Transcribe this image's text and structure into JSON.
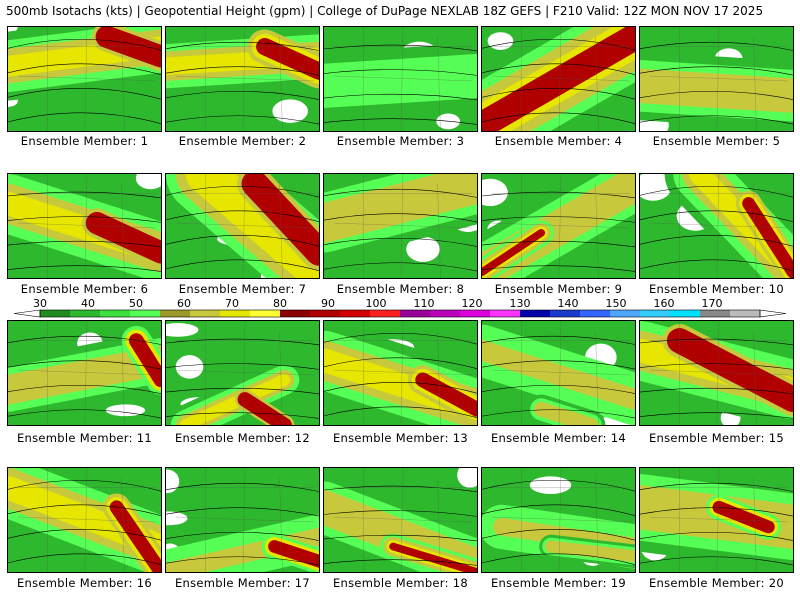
{
  "header": {
    "title": "500mb Isotachs (kts) | Geopotential Height (gpm) | College of DuPage NEXLAB   18Z GEFS | F210 Valid: 12Z MON NOV 17 2025"
  },
  "panels": [
    {
      "label": "Ensemble Member: 1"
    },
    {
      "label": "Ensemble Member: 2"
    },
    {
      "label": "Ensemble Member: 3"
    },
    {
      "label": "Ensemble Member: 4"
    },
    {
      "label": "Ensemble Member: 5"
    },
    {
      "label": "Ensemble Member: 6"
    },
    {
      "label": "Ensemble Member: 7"
    },
    {
      "label": "Ensemble Member: 8"
    },
    {
      "label": "Ensemble Member: 9"
    },
    {
      "label": "Ensemble Member: 10"
    },
    {
      "label": "Ensemble Member: 11"
    },
    {
      "label": "Ensemble Member: 12"
    },
    {
      "label": "Ensemble Member: 13"
    },
    {
      "label": "Ensemble Member: 14"
    },
    {
      "label": "Ensemble Member: 15"
    },
    {
      "label": "Ensemble Member: 16"
    },
    {
      "label": "Ensemble Member: 17"
    },
    {
      "label": "Ensemble Member: 18"
    },
    {
      "label": "Ensemble Member: 19"
    },
    {
      "label": "Ensemble Member: 20"
    }
  ],
  "colorbar": {
    "ticks": [
      "30",
      "40",
      "50",
      "60",
      "70",
      "80",
      "90",
      "100",
      "110",
      "120",
      "130",
      "140",
      "150",
      "160",
      "170"
    ],
    "colors": [
      "#1e8c1e",
      "#2eb82e",
      "#3ee03e",
      "#55ff55",
      "#9a9a2a",
      "#c8c83c",
      "#e6e600",
      "#ffff33",
      "#8b0000",
      "#b00000",
      "#d40000",
      "#ff2020",
      "#990099",
      "#bb00bb",
      "#dd00dd",
      "#ff33ff",
      "#0000aa",
      "#1a3acc",
      "#3366ff",
      "#4da6ff",
      "#33ccff",
      "#00e0ff",
      "#888888",
      "#bbbbbb"
    ]
  }
}
